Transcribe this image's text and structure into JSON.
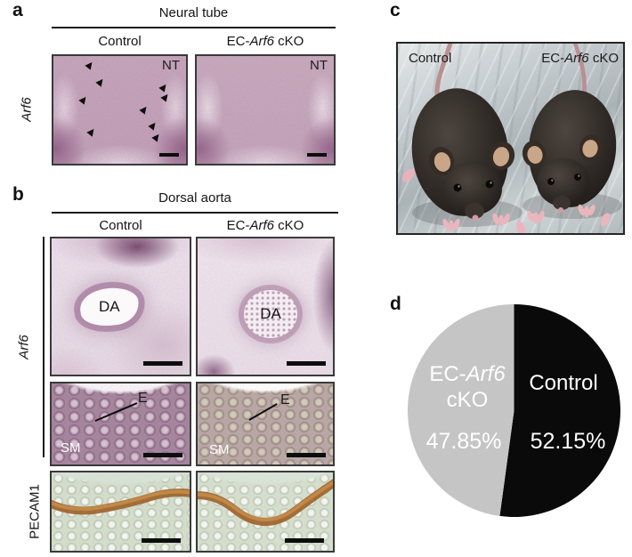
{
  "panel_a": {
    "letter": "a",
    "title": "Neural tube",
    "col_control": "Control",
    "col_cko_prefix": "EC-",
    "col_cko_gene": "Arf6",
    "col_cko_suffix": " cKO",
    "row_gene": "Arf6",
    "region_label": "NT"
  },
  "panel_b": {
    "letter": "b",
    "title": "Dorsal aorta",
    "col_control": "Control",
    "col_cko_prefix": "EC-",
    "col_cko_gene": "Arf6",
    "col_cko_suffix": " cKO",
    "row1_gene": "Arf6",
    "row3_label": "PECAM1",
    "da_label": "DA",
    "e_label": "E",
    "sm_label": "SM"
  },
  "panel_c": {
    "letter": "c",
    "label_control": "Control",
    "label_cko_prefix": "EC-",
    "label_cko_gene": "Arf6",
    "label_cko_suffix": " cKO"
  },
  "panel_d": {
    "letter": "d"
  },
  "chart_data": {
    "type": "pie",
    "legend": "none",
    "start_angle_deg": 0,
    "direction": "clockwise",
    "slices": [
      {
        "label": "Control",
        "value": 52.15,
        "display_pct": "52.15%",
        "color": "#0a0a0a",
        "label_color": "#ffffff"
      },
      {
        "label": "EC-Arf6 cKO",
        "label_prefix": "EC-",
        "label_gene": "Arf6",
        "label_line2": "cKO",
        "value": 47.85,
        "display_pct": "47.85%",
        "color": "#c5c5c5",
        "label_color": "#ffffff"
      }
    ]
  },
  "colors": {
    "ink": "#141414",
    "stain_purple": "#c7a9bd",
    "stain_brown": "#9c6028",
    "pie_black": "#0a0a0a",
    "pie_gray": "#c5c5c5"
  }
}
